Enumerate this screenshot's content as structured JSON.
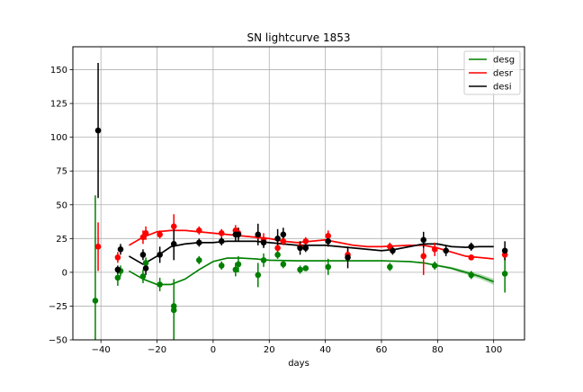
{
  "chart_data": {
    "type": "scatter",
    "title": "SN lightcurve 1853",
    "xlabel": "days",
    "ylabel": "",
    "xlim": [
      -50,
      111
    ],
    "ylim": [
      -50,
      167
    ],
    "x_ticks": [
      -40,
      -20,
      0,
      20,
      40,
      60,
      80,
      100
    ],
    "y_ticks": [
      -50,
      -25,
      0,
      25,
      50,
      75,
      100,
      125,
      150
    ],
    "x_tick_labels": [
      "−40",
      "−20",
      "0",
      "20",
      "40",
      "60",
      "80",
      "100"
    ],
    "y_tick_labels": [
      "−50",
      "−25",
      "0",
      "25",
      "50",
      "75",
      "100",
      "125",
      "150"
    ],
    "grid": true,
    "legend_position": "upper right",
    "series": [
      {
        "name": "desg",
        "color": "#008000",
        "curve": {
          "x": [
            -30,
            -25,
            -20,
            -15,
            -10,
            -5,
            0,
            5,
            10,
            15,
            20,
            30,
            40,
            50,
            60,
            70,
            75,
            80,
            85,
            90,
            95,
            100
          ],
          "y": [
            1,
            -5,
            -9,
            -9,
            -5,
            2,
            8,
            10.5,
            10.5,
            10,
            9,
            8.5,
            8.5,
            8.5,
            8.5,
            8,
            7,
            5,
            3,
            0,
            -3,
            -7
          ],
          "band": [
            0.5,
            0.5,
            0.6,
            0.6,
            0.5,
            0.5,
            0.5,
            0.5,
            0.5,
            0.5,
            0.5,
            0.5,
            0.5,
            0.5,
            0.5,
            0.5,
            0.6,
            0.8,
            1,
            1.4,
            1.8,
            2.2
          ]
        },
        "points": [
          {
            "x": -42,
            "y": -21,
            "err": 78
          },
          {
            "x": -34,
            "y": -4,
            "err": 6
          },
          {
            "x": -33,
            "y": 1,
            "err": 4
          },
          {
            "x": -25,
            "y": -3,
            "err": 5
          },
          {
            "x": -24,
            "y": 7,
            "err": 4
          },
          {
            "x": -19,
            "y": -9,
            "err": 5
          },
          {
            "x": -14,
            "y": -25,
            "err": 20
          },
          {
            "x": -14,
            "y": -28,
            "err": 22
          },
          {
            "x": -5,
            "y": 9,
            "err": 3
          },
          {
            "x": 3,
            "y": 5,
            "err": 3
          },
          {
            "x": 8,
            "y": 2,
            "err": 5
          },
          {
            "x": 9,
            "y": 6,
            "err": 6
          },
          {
            "x": 16,
            "y": -2,
            "err": 9
          },
          {
            "x": 18,
            "y": 9,
            "err": 5
          },
          {
            "x": 23,
            "y": 13,
            "err": 3
          },
          {
            "x": 25,
            "y": 6,
            "err": 3
          },
          {
            "x": 31,
            "y": 2,
            "err": 3
          },
          {
            "x": 33,
            "y": 3,
            "err": 2
          },
          {
            "x": 41,
            "y": 4,
            "err": 6
          },
          {
            "x": 63,
            "y": 4,
            "err": 3
          },
          {
            "x": 79,
            "y": 5,
            "err": 3
          },
          {
            "x": 92,
            "y": -2,
            "err": 3
          },
          {
            "x": 104,
            "y": -1,
            "err": 14
          }
        ]
      },
      {
        "name": "desr",
        "color": "#ff0000",
        "curve": {
          "x": [
            -30,
            -25,
            -20,
            -15,
            -10,
            -5,
            0,
            5,
            10,
            15,
            20,
            25,
            30,
            35,
            40,
            45,
            50,
            55,
            60,
            65,
            70,
            75,
            80,
            85,
            90,
            95,
            100
          ],
          "y": [
            20,
            26,
            30,
            31,
            31,
            30,
            29,
            28,
            27,
            26,
            25,
            23,
            22,
            23,
            24,
            22,
            20,
            19,
            19,
            19.5,
            20,
            20,
            18,
            15,
            12,
            11,
            10
          ],
          "band": [
            0.6,
            0.6,
            0.6,
            0.6,
            0.6,
            0.6,
            0.6,
            0.6,
            0.6,
            0.6,
            0.6,
            0.6,
            0.6,
            0.6,
            0.6,
            0.6,
            0.6,
            0.6,
            0.6,
            0.6,
            0.6,
            0.6,
            0.6,
            0.6,
            0.6,
            0.6,
            0.6
          ]
        },
        "points": [
          {
            "x": -41,
            "y": 19,
            "err": 18
          },
          {
            "x": -34,
            "y": 11,
            "err": 4
          },
          {
            "x": -25,
            "y": 26,
            "err": 5
          },
          {
            "x": -24,
            "y": 29,
            "err": 5
          },
          {
            "x": -19,
            "y": 28,
            "err": 3
          },
          {
            "x": -14,
            "y": 34,
            "err": 9
          },
          {
            "x": -5,
            "y": 31,
            "err": 3
          },
          {
            "x": 3,
            "y": 29,
            "err": 3
          },
          {
            "x": 8,
            "y": 31,
            "err": 4
          },
          {
            "x": 9,
            "y": 29,
            "err": 4
          },
          {
            "x": 16,
            "y": 27,
            "err": 4
          },
          {
            "x": 18,
            "y": 24,
            "err": 5
          },
          {
            "x": 23,
            "y": 18,
            "err": 5
          },
          {
            "x": 25,
            "y": 23,
            "err": 3
          },
          {
            "x": 31,
            "y": 19,
            "err": 3
          },
          {
            "x": 33,
            "y": 23,
            "err": 3
          },
          {
            "x": 41,
            "y": 27,
            "err": 4
          },
          {
            "x": 48,
            "y": 13,
            "err": 4
          },
          {
            "x": 63,
            "y": 19,
            "err": 3
          },
          {
            "x": 75,
            "y": 12,
            "err": 14
          },
          {
            "x": 79,
            "y": 17,
            "err": 5
          },
          {
            "x": 92,
            "y": 11,
            "err": 2
          },
          {
            "x": 104,
            "y": 13,
            "err": 4
          }
        ]
      },
      {
        "name": "desi",
        "color": "#000000",
        "curve": {
          "x": [
            -30,
            -25,
            -20,
            -15,
            -10,
            -5,
            0,
            5,
            10,
            15,
            20,
            25,
            30,
            35,
            40,
            45,
            50,
            55,
            60,
            65,
            70,
            75,
            80,
            85,
            90,
            95,
            100
          ],
          "y": [
            12,
            6,
            12,
            19,
            21,
            22,
            22,
            23,
            23,
            23,
            22,
            21,
            20,
            20,
            20,
            19,
            18,
            17,
            16,
            17,
            19,
            21,
            21,
            19,
            18.5,
            19,
            19
          ],
          "band": [
            0.6,
            0.6,
            0.6,
            0.6,
            0.6,
            0.6,
            0.6,
            0.6,
            0.6,
            0.6,
            0.6,
            0.6,
            0.6,
            0.6,
            0.6,
            0.6,
            0.6,
            0.6,
            0.6,
            0.6,
            0.6,
            0.6,
            0.6,
            0.6,
            0.6,
            0.6,
            0.6
          ]
        },
        "points": [
          {
            "x": -41,
            "y": 105,
            "err": 50
          },
          {
            "x": -34,
            "y": 2,
            "err": 3
          },
          {
            "x": -33,
            "y": 17,
            "err": 4
          },
          {
            "x": -25,
            "y": 13,
            "err": 4
          },
          {
            "x": -24,
            "y": 3,
            "err": 5
          },
          {
            "x": -19,
            "y": 13,
            "err": 6
          },
          {
            "x": -14,
            "y": 21,
            "err": 12
          },
          {
            "x": -5,
            "y": 22,
            "err": 3
          },
          {
            "x": 3,
            "y": 23,
            "err": 3
          },
          {
            "x": 8,
            "y": 28,
            "err": 5
          },
          {
            "x": 9,
            "y": 28,
            "err": 5
          },
          {
            "x": 16,
            "y": 28,
            "err": 8
          },
          {
            "x": 18,
            "y": 22,
            "err": 4
          },
          {
            "x": 23,
            "y": 25,
            "err": 7
          },
          {
            "x": 25,
            "y": 28,
            "err": 5
          },
          {
            "x": 31,
            "y": 18,
            "err": 5
          },
          {
            "x": 33,
            "y": 18,
            "err": 3
          },
          {
            "x": 41,
            "y": 23,
            "err": 4
          },
          {
            "x": 48,
            "y": 11,
            "err": 8
          },
          {
            "x": 64,
            "y": 16,
            "err": 3
          },
          {
            "x": 75,
            "y": 24,
            "err": 6
          },
          {
            "x": 83,
            "y": 16,
            "err": 4
          },
          {
            "x": 92,
            "y": 19,
            "err": 3
          },
          {
            "x": 104,
            "y": 16,
            "err": 7
          }
        ]
      }
    ]
  }
}
